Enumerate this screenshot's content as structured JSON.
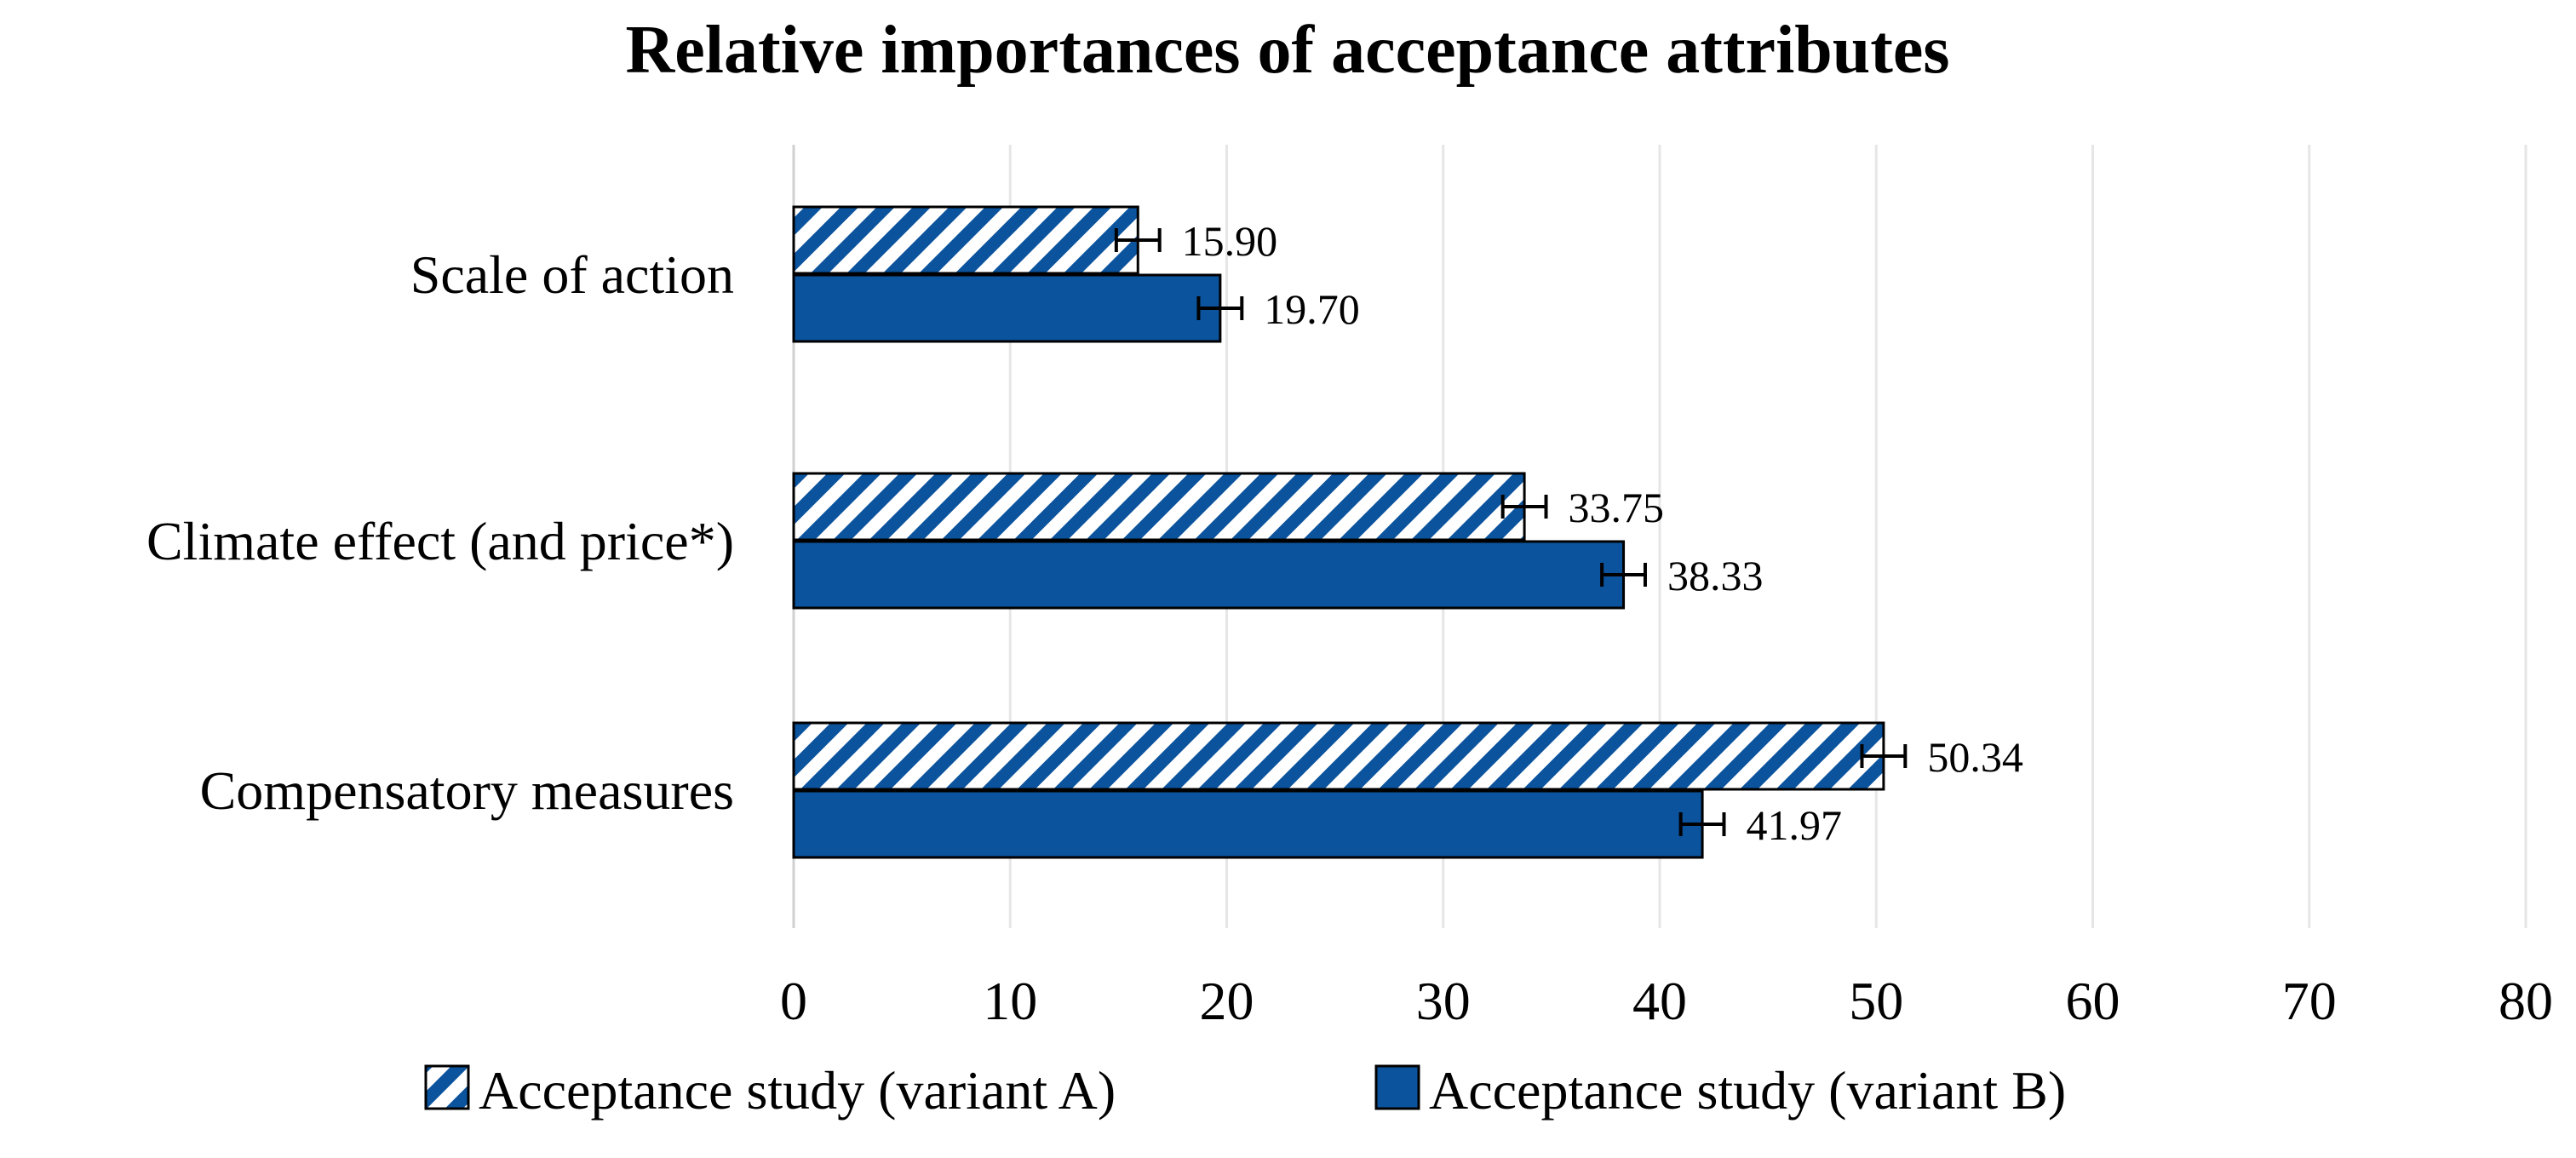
{
  "chart_data": {
    "type": "bar",
    "orientation": "horizontal",
    "title": "Relative importances of acceptance attributes",
    "xlabel": "",
    "ylabel": "",
    "categories": [
      "Scale of action",
      "Climate effect (and price*)",
      "Compensatory measures"
    ],
    "series": [
      {
        "name": "Acceptance study (variant A)",
        "values": [
          15.9,
          33.75,
          50.34
        ],
        "labels": [
          "15.90",
          "33.75",
          "50.34"
        ],
        "errors": [
          1.0,
          1.0,
          1.0
        ],
        "pattern": "hatched",
        "color": "#0b539d"
      },
      {
        "name": "Acceptance study (variant B)",
        "values": [
          19.7,
          38.33,
          41.97
        ],
        "labels": [
          "19.70",
          "38.33",
          "41.97"
        ],
        "errors": [
          1.0,
          1.0,
          1.0
        ],
        "pattern": "solid",
        "color": "#0b539d"
      }
    ],
    "xlim": [
      0,
      80
    ],
    "xticks": [
      "0",
      "10",
      "20",
      "30",
      "40",
      "50",
      "60",
      "70",
      "80"
    ],
    "grid": true,
    "legend_position": "bottom"
  }
}
